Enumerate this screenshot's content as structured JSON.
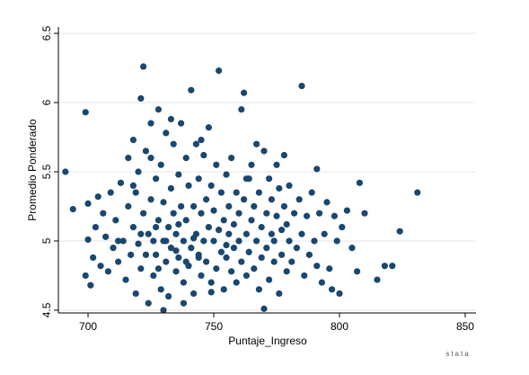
{
  "chart_data": {
    "type": "scatter",
    "x_label": "Puntaje_Ingreso",
    "y_label": "Promedio Ponderado",
    "logo": "stata",
    "color": "#1a476f",
    "grid": true,
    "xlim": [
      688.2,
      854.3
    ],
    "xticks": [
      700,
      750,
      800,
      850
    ],
    "ylim": [
      4.48,
      6.546
    ],
    "yticks": [
      4.5,
      5,
      5.5,
      6,
      6.5
    ],
    "x": [
      691,
      694,
      699,
      699,
      700,
      700,
      701,
      702,
      703,
      704,
      705,
      706,
      707,
      708,
      709,
      710,
      711,
      712,
      713,
      714,
      715,
      716,
      716,
      717,
      718,
      718,
      719,
      719,
      720,
      720,
      721,
      721,
      722,
      722,
      723,
      723,
      724,
      724,
      725,
      725,
      726,
      726,
      727,
      727,
      728,
      728,
      729,
      729,
      730,
      730,
      731,
      731,
      732,
      732,
      733,
      733,
      734,
      734,
      735,
      735,
      736,
      736,
      737,
      737,
      738,
      738,
      739,
      739,
      740,
      740,
      741,
      741,
      742,
      742,
      743,
      743,
      744,
      744,
      745,
      745,
      746,
      746,
      747,
      747,
      748,
      748,
      749,
      749,
      750,
      750,
      751,
      751,
      752,
      752,
      753,
      753,
      754,
      754,
      755,
      755,
      756,
      756,
      757,
      757,
      758,
      758,
      759,
      759,
      760,
      760,
      761,
      761,
      762,
      762,
      763,
      763,
      764,
      764,
      765,
      765,
      766,
      766,
      767,
      767,
      768,
      768,
      769,
      769,
      770,
      770,
      771,
      771,
      772,
      772,
      773,
      773,
      774,
      774,
      775,
      775,
      776,
      776,
      777,
      777,
      778,
      778,
      779,
      779,
      780,
      780,
      781,
      782,
      783,
      784,
      785,
      785,
      786,
      787,
      788,
      789,
      790,
      791,
      791,
      792,
      793,
      794,
      795,
      796,
      797,
      798,
      799,
      800,
      801,
      803,
      805,
      807,
      808,
      810,
      815,
      818,
      821,
      824,
      831,
      763,
      745,
      733,
      725,
      718,
      730,
      738,
      749,
      712,
      727,
      735,
      742,
      755,
      728,
      736,
      744,
      721,
      731,
      739
    ],
    "values": [
      5.5,
      5.23,
      5.93,
      4.75,
      5.27,
      5.01,
      4.68,
      4.88,
      5.1,
      5.32,
      4.82,
      5.2,
      5.03,
      4.78,
      5.35,
      4.95,
      5.15,
      4.85,
      5.42,
      5.0,
      4.72,
      5.6,
      5.25,
      4.9,
      5.73,
      5.1,
      4.62,
      5.35,
      4.98,
      5.5,
      4.8,
      6.03,
      6.26,
      5.2,
      4.9,
      5.65,
      5.05,
      4.55,
      5.85,
      5.3,
      4.75,
      5.0,
      5.45,
      4.9,
      5.95,
      5.15,
      4.65,
      5.55,
      5.0,
      5.28,
      4.85,
      5.78,
      5.1,
      4.6,
      5.38,
      4.95,
      5.7,
      5.2,
      4.78,
      5.05,
      5.48,
      4.88,
      5.85,
      5.25,
      4.7,
      5.0,
      5.6,
      5.15,
      4.82,
      5.4,
      6.09,
      4.95,
      5.25,
      4.62,
      5.7,
      5.05,
      4.9,
      5.45,
      5.2,
      4.75,
      5.62,
      5.0,
      5.3,
      4.85,
      5.82,
      5.1,
      4.7,
      5.4,
      5.0,
      5.22,
      4.8,
      5.55,
      6.23,
      5.08,
      4.92,
      5.35,
      4.65,
      5.15,
      5.48,
      4.88,
      5.05,
      5.25,
      4.78,
      5.6,
      5.12,
      4.95,
      5.35,
      4.7,
      5.0,
      5.2,
      5.95,
      4.85,
      6.07,
      5.3,
      5.05,
      4.75,
      5.45,
      4.92,
      5.15,
      5.55,
      4.8,
      5.25,
      5.7,
      5.0,
      4.65,
      5.35,
      5.1,
      4.88,
      5.65,
      4.51,
      5.2,
      4.95,
      5.45,
      4.72,
      5.05,
      5.3,
      4.85,
      5.0,
      5.55,
      5.18,
      4.62,
      5.38,
      5.08,
      4.9,
      5.62,
      5.25,
      4.78,
      5.12,
      5.0,
      5.4,
      4.85,
      5.2,
      4.95,
      5.3,
      6.12,
      5.05,
      4.75,
      5.18,
      4.9,
      5.35,
      5.0,
      5.52,
      4.82,
      5.2,
      4.7,
      5.05,
      5.28,
      4.8,
      4.65,
      5.18,
      5.0,
      4.62,
      5.1,
      5.22,
      4.95,
      4.78,
      5.42,
      5.2,
      4.72,
      4.82,
      4.82,
      5.07,
      5.35,
      5.45,
      5.73,
      5.88,
      5.6,
      5.4,
      4.5,
      4.55,
      4.63,
      5.0,
      5.1,
      4.93,
      5.02,
      4.97,
      4.8,
      5.12,
      4.88,
      5.05,
      5.0,
      4.85
    ]
  }
}
